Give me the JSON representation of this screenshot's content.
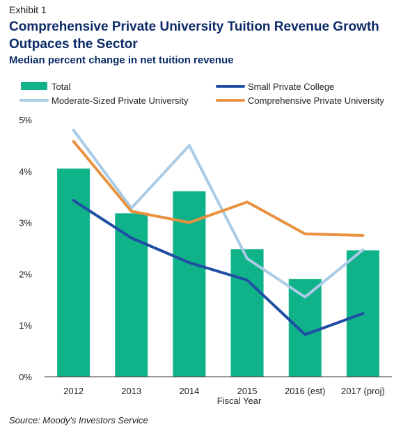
{
  "header": {
    "exhibit": "Exhibit 1",
    "title": "Comprehensive Private University Tuition Revenue Growth Outpaces the Sector",
    "subtitle": "Median percent change in net tuition revenue"
  },
  "source": "Source: Moody's Investors Service",
  "chart_data": {
    "type": "bar",
    "categories": [
      "2012",
      "2013",
      "2014",
      "2015",
      "2016 (est)",
      "2017 (proj)"
    ],
    "xlabel": "Fiscal Year",
    "ylabel": "",
    "ylim": [
      0,
      5
    ],
    "yticks": [
      "0%",
      "1%",
      "2%",
      "3%",
      "4%",
      "5%"
    ],
    "grid": false,
    "legend_position": "top",
    "series": [
      {
        "name": "Total",
        "kind": "bar",
        "color": "#10b28a",
        "values": [
          4.05,
          3.18,
          3.61,
          2.48,
          1.9,
          2.46
        ]
      },
      {
        "name": "Small Private College",
        "kind": "line",
        "color": "#1f4fa2",
        "values": [
          3.43,
          2.7,
          2.22,
          1.88,
          0.82,
          1.23
        ]
      },
      {
        "name": "Moderate-Sized Private University",
        "kind": "line",
        "color": "#a9cbe6",
        "values": [
          4.8,
          3.28,
          4.5,
          2.3,
          1.55,
          2.47
        ]
      },
      {
        "name": "Comprehensive Private University",
        "kind": "line",
        "color": "#e8913f",
        "values": [
          4.58,
          3.22,
          3.0,
          3.4,
          2.78,
          2.75
        ]
      }
    ]
  }
}
